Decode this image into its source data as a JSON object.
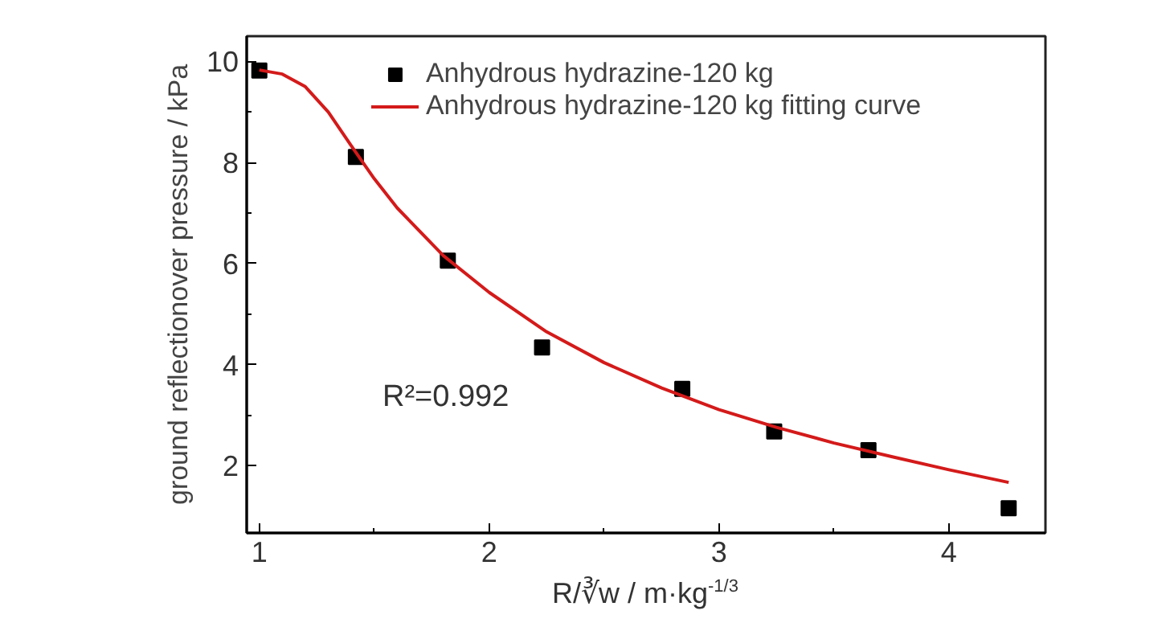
{
  "chart_data": {
    "type": "scatter",
    "xlabel": "R/∛w / m·kg$^{-1/3}$",
    "ylabel": "ground reflectionover pressure / kPa",
    "xlim": [
      0.945,
      4.42
    ],
    "ylim": [
      0.67,
      10.5
    ],
    "xticks": [
      1,
      2,
      3,
      4
    ],
    "yticks": [
      2,
      4,
      6,
      8,
      10
    ],
    "series": [
      {
        "name": "Anhydrous hydrazine-120 kg",
        "color": "#000000",
        "marker": "square",
        "x": [
          1.0,
          1.42,
          1.82,
          2.23,
          2.84,
          3.24,
          3.65,
          4.26
        ],
        "values": [
          9.82,
          8.11,
          6.06,
          4.34,
          3.52,
          2.68,
          2.31,
          1.16
        ]
      },
      {
        "name": "Anhydrous hydrazine-120 kg fitting curve",
        "color": "#d41a1a",
        "type": "line",
        "line_style": "solid",
        "x": [
          1.0,
          1.1,
          1.2,
          1.3,
          1.4,
          1.5,
          1.6,
          1.8,
          2.0,
          2.25,
          2.5,
          2.75,
          3.0,
          3.25,
          3.5,
          3.75,
          4.0,
          4.26
        ],
        "values": [
          9.83,
          9.75,
          9.5,
          9.0,
          8.33,
          7.68,
          7.1,
          6.16,
          5.43,
          4.65,
          4.04,
          3.54,
          3.11,
          2.76,
          2.45,
          2.18,
          1.92,
          1.67
        ]
      }
    ],
    "annotations": [
      "R²=0.992"
    ],
    "legend": "top",
    "grid": false
  }
}
